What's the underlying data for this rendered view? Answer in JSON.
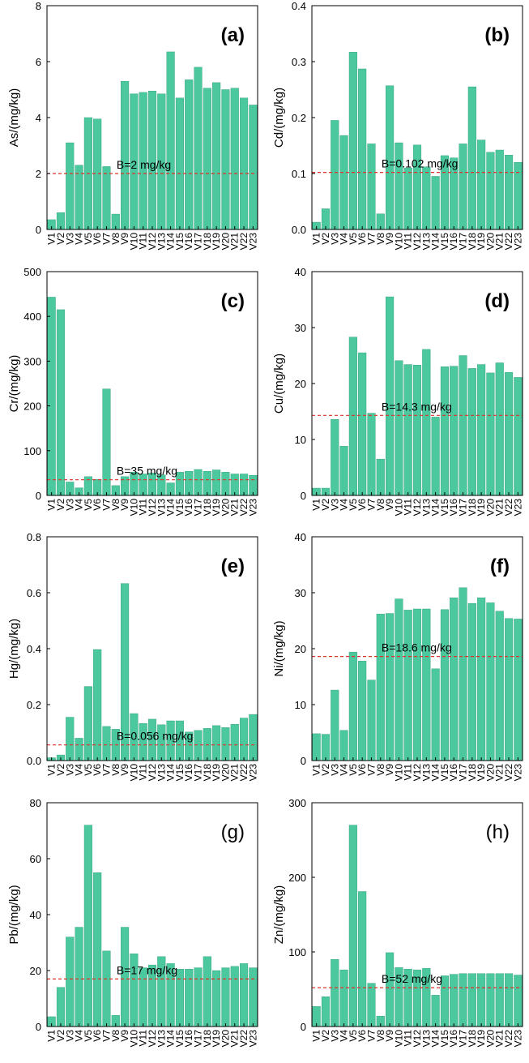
{
  "colors": {
    "bar": "#4cc89e",
    "bar_edge": "#2e9c78",
    "baseline": "#e0302a",
    "axis": "#000000"
  },
  "chart_data": [
    {
      "type": "bar",
      "panel_label": "(a)",
      "label_bold": true,
      "ylabel": "As/(mg/kg)",
      "ylim": [
        0,
        8
      ],
      "yticks": [
        0,
        2,
        4,
        6,
        8
      ],
      "categories": [
        "V1",
        "V2",
        "V3",
        "V4",
        "V5",
        "V6",
        "V7",
        "V8",
        "V9",
        "V10",
        "V11",
        "V12",
        "V13",
        "V14",
        "V15",
        "V16",
        "V17",
        "V18",
        "V19",
        "V20",
        "V21",
        "V22",
        "V23"
      ],
      "values": [
        0.35,
        0.6,
        3.1,
        2.3,
        4.0,
        3.95,
        2.25,
        0.55,
        5.3,
        4.85,
        4.9,
        4.95,
        4.85,
        6.35,
        4.7,
        5.35,
        5.8,
        5.05,
        5.25,
        5.0,
        5.05,
        4.7,
        4.45
      ],
      "baseline": {
        "value": 2,
        "label": "B=2 mg/kg"
      }
    },
    {
      "type": "bar",
      "panel_label": "(b)",
      "label_bold": true,
      "ylabel": "Cd/(mg/kg)",
      "ylim": [
        0,
        0.4
      ],
      "yticks": [
        0.0,
        0.1,
        0.2,
        0.3,
        0.4
      ],
      "ytick_labels": [
        "0.0",
        "0.1",
        "0.2",
        "0.3",
        "0.4"
      ],
      "categories": [
        "V1",
        "V2",
        "V3",
        "V4",
        "V5",
        "V6",
        "V7",
        "V8",
        "V9",
        "V10",
        "V11",
        "V12",
        "V13",
        "V14",
        "V15",
        "V16",
        "V17",
        "V18",
        "V19",
        "V20",
        "V21",
        "V22",
        "V23"
      ],
      "values": [
        0.013,
        0.037,
        0.195,
        0.168,
        0.317,
        0.287,
        0.153,
        0.028,
        0.257,
        0.155,
        0.11,
        0.151,
        0.112,
        0.095,
        0.132,
        0.128,
        0.153,
        0.255,
        0.16,
        0.138,
        0.142,
        0.133,
        0.12
      ],
      "baseline": {
        "value": 0.102,
        "label": "B=0.102 mg/kg"
      }
    },
    {
      "type": "bar",
      "panel_label": "(c)",
      "label_bold": true,
      "ylabel": "Cr/(mg/kg)",
      "ylim": [
        0,
        500
      ],
      "yticks": [
        0,
        100,
        200,
        300,
        400,
        500
      ],
      "categories": [
        "V1",
        "V2",
        "V3",
        "V4",
        "V5",
        "V6",
        "V7",
        "V8",
        "V9",
        "V10",
        "V11",
        "V12",
        "V13",
        "V14",
        "V15",
        "V16",
        "V17",
        "V18",
        "V19",
        "V20",
        "V21",
        "V22",
        "V23"
      ],
      "values": [
        443,
        415,
        30,
        17,
        42,
        36,
        238,
        22,
        42,
        52,
        48,
        50,
        46,
        28,
        52,
        54,
        58,
        54,
        57,
        52,
        48,
        48,
        45
      ],
      "baseline": {
        "value": 35,
        "label": "B=35 mg/kg"
      }
    },
    {
      "type": "bar",
      "panel_label": "(d)",
      "label_bold": true,
      "ylabel": "Cu/(mg/kg)",
      "ylim": [
        0,
        40
      ],
      "yticks": [
        0,
        10,
        20,
        30,
        40
      ],
      "categories": [
        "V1",
        "V2",
        "V3",
        "V4",
        "V5",
        "V6",
        "V7",
        "V8",
        "V9",
        "V10",
        "V11",
        "V12",
        "V13",
        "V14",
        "V15",
        "V16",
        "V17",
        "V18",
        "V19",
        "V20",
        "V21",
        "V22",
        "V23"
      ],
      "values": [
        1.3,
        1.3,
        13.6,
        8.8,
        28.3,
        25.5,
        14.7,
        6.5,
        35.5,
        24.1,
        23.4,
        23.3,
        26.1,
        14.0,
        23.0,
        23.1,
        25.0,
        22.7,
        23.4,
        21.9,
        23.7,
        22.0,
        21.1
      ],
      "baseline": {
        "value": 14.3,
        "label": "B=14.3 mg/kg"
      }
    },
    {
      "type": "bar",
      "panel_label": "(e)",
      "label_bold": true,
      "ylabel": "Hg/(mg/kg)",
      "ylim": [
        0,
        0.8
      ],
      "yticks": [
        0.0,
        0.2,
        0.4,
        0.6,
        0.8
      ],
      "ytick_labels": [
        "0.0",
        "0.2",
        "0.4",
        "0.6",
        "0.8"
      ],
      "categories": [
        "V1",
        "V2",
        "V3",
        "V4",
        "V5",
        "V6",
        "V7",
        "V8",
        "V9",
        "V10",
        "V11",
        "V12",
        "V13",
        "V14",
        "V15",
        "V16",
        "V17",
        "V18",
        "V19",
        "V20",
        "V21",
        "V22",
        "V23"
      ],
      "values": [
        0.01,
        0.02,
        0.155,
        0.08,
        0.265,
        0.397,
        0.122,
        0.112,
        0.633,
        0.168,
        0.133,
        0.148,
        0.128,
        0.142,
        0.142,
        0.102,
        0.108,
        0.115,
        0.125,
        0.118,
        0.13,
        0.152,
        0.165
      ],
      "baseline": {
        "value": 0.056,
        "label": "B=0.056 mg/kg"
      }
    },
    {
      "type": "bar",
      "panel_label": "(f)",
      "label_bold": true,
      "ylabel": "Ni/(mg/kg)",
      "ylim": [
        0,
        40
      ],
      "yticks": [
        0,
        10,
        20,
        30,
        40
      ],
      "categories": [
        "V1",
        "V2",
        "V3",
        "V4",
        "V5",
        "V6",
        "V7",
        "V8",
        "V9",
        "V10",
        "V11",
        "V12",
        "V13",
        "V14",
        "V15",
        "V16",
        "V17",
        "V18",
        "V19",
        "V20",
        "V21",
        "V22",
        "V23"
      ],
      "values": [
        4.8,
        4.7,
        12.6,
        5.4,
        19.4,
        17.8,
        14.4,
        26.2,
        26.3,
        28.9,
        26.9,
        27.1,
        27.1,
        16.4,
        27.0,
        29.1,
        30.9,
        28.1,
        29.1,
        28.2,
        26.7,
        25.4,
        25.3
      ],
      "baseline": {
        "value": 18.6,
        "label": "B=18.6 mg/kg"
      }
    },
    {
      "type": "bar",
      "panel_label": "(g)",
      "label_bold": false,
      "ylabel": "Pb/(mg/kg)",
      "ylim": [
        0,
        80
      ],
      "yticks": [
        0,
        20,
        40,
        60,
        80
      ],
      "categories": [
        "V1",
        "V2",
        "V3",
        "V4",
        "V5",
        "V6",
        "V7",
        "V8",
        "V9",
        "V10",
        "V11",
        "V12",
        "V13",
        "V14",
        "V15",
        "V16",
        "V17",
        "V18",
        "V19",
        "V20",
        "V21",
        "V22",
        "V23"
      ],
      "values": [
        3.5,
        14.0,
        32.0,
        35.5,
        72.0,
        55.0,
        27.0,
        4.0,
        35.5,
        26.0,
        21.0,
        22.0,
        25.0,
        22.5,
        20.5,
        20.5,
        21.0,
        25.0,
        20.0,
        21.0,
        21.5,
        22.5,
        21.0
      ],
      "baseline": {
        "value": 17,
        "label": "B=17 mg/kg"
      }
    },
    {
      "type": "bar",
      "panel_label": "(h)",
      "label_bold": false,
      "ylabel": "Zn/(mg/kg)",
      "ylim": [
        0,
        300
      ],
      "yticks": [
        0,
        100,
        200,
        300
      ],
      "categories": [
        "V1",
        "V2",
        "V3",
        "V4",
        "V5",
        "V6",
        "V7",
        "V8",
        "V9",
        "V10",
        "V11",
        "V12",
        "V13",
        "V14",
        "V15",
        "V16",
        "V17",
        "V18",
        "V19",
        "V20",
        "V21",
        "V22",
        "V23"
      ],
      "values": [
        27,
        40,
        90,
        76,
        270,
        181,
        58,
        14,
        99,
        79,
        77,
        76,
        78,
        42,
        68,
        70,
        71,
        71,
        71,
        71,
        71,
        71,
        69
      ],
      "baseline": {
        "value": 52,
        "label": "B=52 mg/kg"
      }
    }
  ]
}
